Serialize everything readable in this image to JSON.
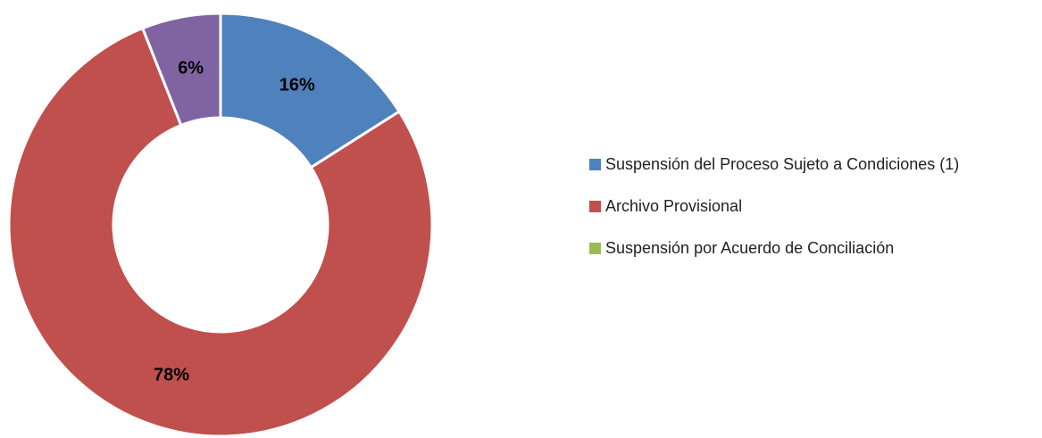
{
  "chart_data": {
    "type": "pie",
    "donut": true,
    "categories": [
      "Suspensión del Proceso Sujeto a Condiciones (1)",
      "Archivo Provisional",
      "Suspensión por Acuerdo de Conciliación",
      null
    ],
    "values": [
      16,
      78,
      0,
      6
    ],
    "value_labels": [
      "16%",
      "78%",
      null,
      "6%"
    ],
    "colors": [
      "#4f81bd",
      "#c0504d",
      "#9bbb59",
      "#8064a2"
    ],
    "legend": "right"
  }
}
